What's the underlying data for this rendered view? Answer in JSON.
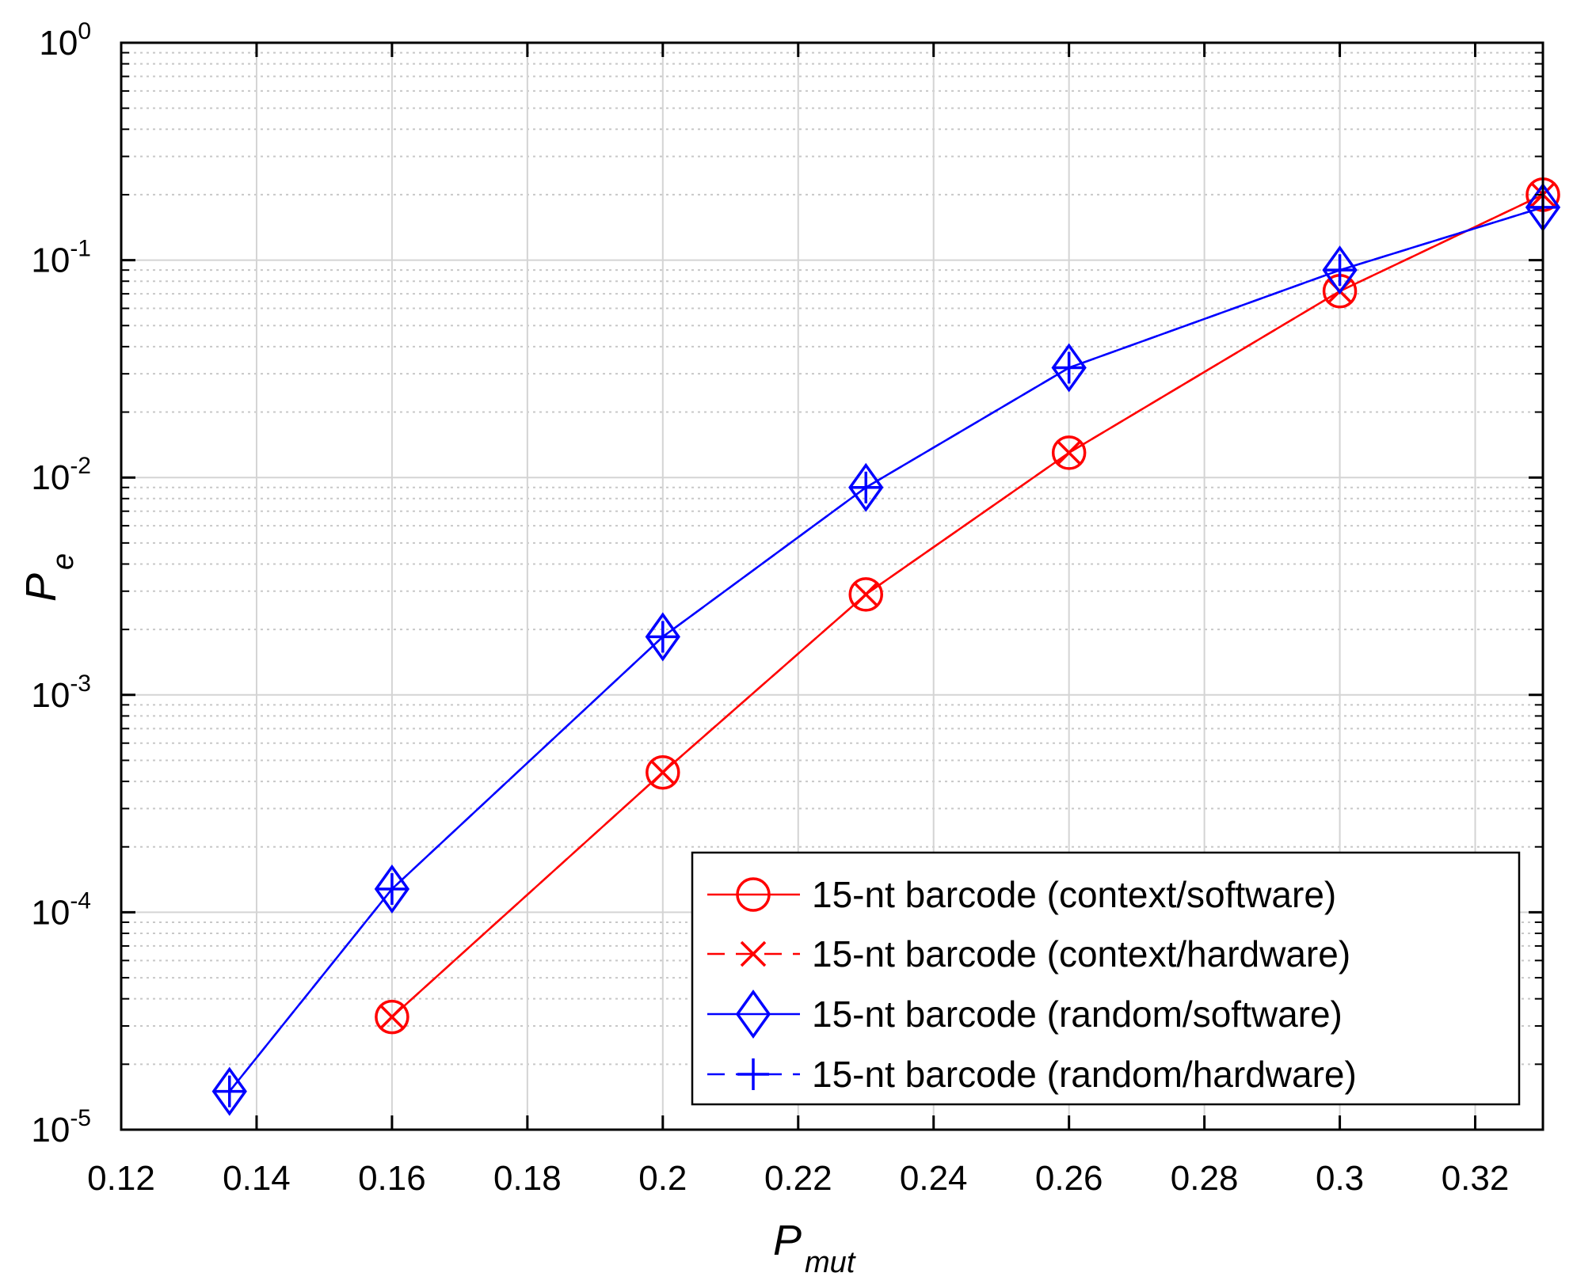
{
  "chart_data": {
    "type": "line",
    "title": "",
    "xlabel": {
      "main": "P",
      "sub": "mut"
    },
    "ylabel": {
      "main": "P",
      "sub": "e"
    },
    "xlim": [
      0.12,
      0.33
    ],
    "ylim": [
      1e-05,
      1
    ],
    "yscale": "log",
    "grid": true,
    "minor_grid": true,
    "legend_position": "bottom-right",
    "x_ticks": [
      0.12,
      0.14,
      0.16,
      0.18,
      0.2,
      0.22,
      0.24,
      0.26,
      0.28,
      0.3,
      0.32
    ],
    "x_tick_labels": [
      "0.12",
      "0.14",
      "0.16",
      "0.18",
      "0.2",
      "0.22",
      "0.24",
      "0.26",
      "0.28",
      "0.3",
      "0.32"
    ],
    "y_ticks": [
      {
        "value": 1e-05,
        "base": "10",
        "exp": "-5"
      },
      {
        "value": 0.0001,
        "base": "10",
        "exp": "-4"
      },
      {
        "value": 0.001,
        "base": "10",
        "exp": "-3"
      },
      {
        "value": 0.01,
        "base": "10",
        "exp": "-2"
      },
      {
        "value": 0.1,
        "base": "10",
        "exp": "-1"
      },
      {
        "value": 1,
        "base": "10",
        "exp": "0"
      }
    ],
    "series": [
      {
        "name": "15-nt barcode (context/software)",
        "color": "#ff0000",
        "line_style": "solid",
        "marker": "circle",
        "x": [
          0.16,
          0.2,
          0.23,
          0.26,
          0.3,
          0.33
        ],
        "y": [
          3.3e-05,
          0.00044,
          0.0029,
          0.013,
          0.072,
          0.2
        ]
      },
      {
        "name": "15-nt barcode (context/hardware)",
        "color": "#ff0000",
        "line_style": "dashed",
        "marker": "x",
        "x": [
          0.16,
          0.2,
          0.23,
          0.26,
          0.3,
          0.33
        ],
        "y": [
          3.3e-05,
          0.00044,
          0.0029,
          0.013,
          0.072,
          0.2
        ]
      },
      {
        "name": "15-nt barcode (random/software)",
        "color": "#0000ff",
        "line_style": "solid",
        "marker": "diamond",
        "x": [
          0.136,
          0.16,
          0.2,
          0.23,
          0.26,
          0.3,
          0.33
        ],
        "y": [
          1.5e-05,
          0.000128,
          0.00185,
          0.009,
          0.032,
          0.09,
          0.175
        ]
      },
      {
        "name": "15-nt barcode (random/hardware)",
        "color": "#0000ff",
        "line_style": "dashed",
        "marker": "plus",
        "x": [
          0.136,
          0.16,
          0.2,
          0.23,
          0.26,
          0.3,
          0.33
        ],
        "y": [
          1.5e-05,
          0.000128,
          0.00185,
          0.009,
          0.032,
          0.09,
          0.175
        ]
      }
    ]
  }
}
